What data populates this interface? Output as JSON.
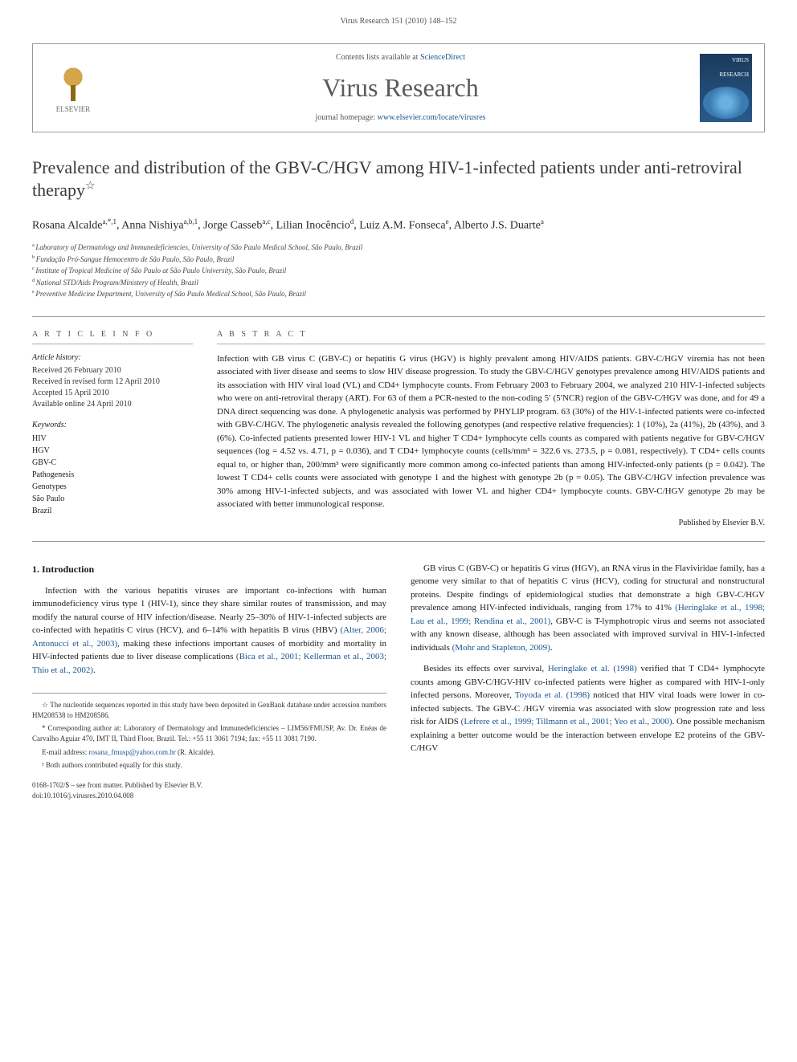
{
  "header": {
    "citation": "Virus Research 151 (2010) 148–152",
    "contents_prefix": "Contents lists available at ",
    "contents_link": "ScienceDirect",
    "journal_title": "Virus Research",
    "homepage_prefix": "journal homepage: ",
    "homepage_link": "www.elsevier.com/locate/virusres",
    "elsevier_label": "ELSEVIER",
    "cover_top": "VIRUS",
    "cover_bottom": "RESEARCH"
  },
  "title": "Prevalence and distribution of the GBV-C/HGV among HIV-1-infected patients under anti-retroviral therapy",
  "title_footnote_marker": "☆",
  "authors_html": "Rosana Alcalde",
  "authors": [
    {
      "name": "Rosana Alcalde",
      "sup": "a,*,1"
    },
    {
      "name": "Anna Nishiya",
      "sup": "a,b,1"
    },
    {
      "name": "Jorge Casseb",
      "sup": "a,c"
    },
    {
      "name": "Lilian Inocêncio",
      "sup": "d"
    },
    {
      "name": "Luiz A.M. Fonseca",
      "sup": "e"
    },
    {
      "name": "Alberto J.S. Duarte",
      "sup": "a"
    }
  ],
  "affiliations": [
    {
      "sup": "a",
      "text": "Laboratory of Dermatology and Immunedeficiencies, University of São Paulo Medical School, São Paulo, Brazil"
    },
    {
      "sup": "b",
      "text": "Fundação Pró-Sangue Hemocentro de São Paulo, São Paulo, Brazil"
    },
    {
      "sup": "c",
      "text": "Institute of Tropical Medicine of São Paulo at São Paulo University, São Paulo, Brazil"
    },
    {
      "sup": "d",
      "text": "National STD/Aids Program/Ministery of Health, Brazil"
    },
    {
      "sup": "e",
      "text": "Preventive Medicine Department, University of São Paulo Medical School, São Paulo, Brazil"
    }
  ],
  "article_info": {
    "heading": "A R T I C L E   I N F O",
    "history_title": "Article history:",
    "history": [
      "Received 26 February 2010",
      "Received in revised form 12 April 2010",
      "Accepted 15 April 2010",
      "Available online 24 April 2010"
    ],
    "keywords_title": "Keywords:",
    "keywords": [
      "HIV",
      "HGV",
      "GBV-C",
      "Pathogenesis",
      "Genotypes",
      "São Paulo",
      "Brazil"
    ]
  },
  "abstract": {
    "heading": "A B S T R A C T",
    "text": "Infection with GB virus C (GBV-C) or hepatitis G virus (HGV) is highly prevalent among HIV/AIDS patients. GBV-C/HGV viremia has not been associated with liver disease and seems to slow HIV disease progression. To study the GBV-C/HGV genotypes prevalence among HIV/AIDS patients and its association with HIV viral load (VL) and CD4+ lymphocyte counts. From February 2003 to February 2004, we analyzed 210 HIV-1-infected subjects who were on anti-retroviral therapy (ART). For 63 of them a PCR-nested to the non-coding 5′ (5′NCR) region of the GBV-C/HGV was done, and for 49 a DNA direct sequencing was done. A phylogenetic analysis was performed by PHYLIP program. 63 (30%) of the HIV-1-infected patients were co-infected with GBV-C/HGV. The phylogenetic analysis revealed the following genotypes (and respective relative frequencies): 1 (10%), 2a (41%), 2b (43%), and 3 (6%). Co-infected patients presented lower HIV-1 VL and higher T CD4+ lymphocyte cells counts as compared with patients negative for GBV-C/HGV sequences (log = 4.52 vs. 4.71, p = 0.036), and T CD4+ lymphocyte counts (cells/mm³ = 322.6 vs. 273.5, p = 0.081, respectively). T CD4+ cells counts equal to, or higher than, 200/mm³ were significantly more common among co-infected patients than among HIV-infected-only patients (p = 0.042). The lowest T CD4+ cells counts were associated with genotype 1 and the highest with genotype 2b (p = 0.05). The GBV-C/HGV infection prevalence was 30% among HIV-1-infected subjects, and was associated with lower VL and higher CD4+ lymphocyte counts. GBV-C/HGV genotype 2b may be associated with better immunological response.",
    "publisher": "Published by Elsevier B.V."
  },
  "body": {
    "section1_heading": "1. Introduction",
    "col1_p1": "Infection with the various hepatitis viruses are important co-infections with human immunodeficiency virus type 1 (HIV-1), since they share similar routes of transmission, and may modify the natural course of HIV infection/disease. Nearly 25–30% of HIV-1-infected subjects are co-infected with hepatitis C virus (HCV), and 6–14% with hepatitis B virus (HBV) ",
    "col1_ref1": "(Alter, 2006; Antonucci et al., 2003)",
    "col1_p1b": ", making these infections important causes of morbidity and mortality in HIV-infected patients due to liver disease complications ",
    "col1_ref2": "(Bica et al., 2001; Kellerman et al., 2003; Thio et al., 2002)",
    "col1_p1c": ".",
    "col2_p1": "GB virus C (GBV-C) or hepatitis G virus (HGV), an RNA virus in the Flaviviridae family, has a genome very similar to that of hepatitis C virus (HCV), coding for structural and nonstructural proteins. Despite findings of epidemiological studies that demonstrate a high GBV-C/HGV prevalence among HIV-infected individuals, ranging from 17% to 41% ",
    "col2_ref1": "(Heringlake et al., 1998; Lau et al., 1999; Rendina et al., 2001)",
    "col2_p1b": ", GBV-C is T-lymphotropic virus and seems not associated with any known disease, although has been associated with improved survival in HIV-1-infected individuals ",
    "col2_ref2": "(Mohr and Stapleton, 2009)",
    "col2_p1c": ".",
    "col2_p2a": "Besides its effects over survival, ",
    "col2_ref3": "Heringlake et al. (1998)",
    "col2_p2b": " verified that T CD4+ lymphocyte counts among GBV-C/HGV-HIV co-infected patients were higher as compared with HIV-1-only infected persons. Moreover, ",
    "col2_ref4": "Toyoda et al. (1998)",
    "col2_p2c": " noticed that HIV viral loads were lower in co-infected subjects. The GBV-C /HGV viremia was associated with slow progression rate and less risk for AIDS ",
    "col2_ref5": "(Lefrere et al., 1999; Tillmann et al., 2001; Yeo et al., 2000)",
    "col2_p2d": ". One possible mechanism explaining a better outcome would be the interaction between envelope E2 proteins of the GBV-C/HGV"
  },
  "footnotes": {
    "star": "☆ The nucleotide sequences reported in this study have been deposited in GenBank database under accession numbers HM208538 to HM208586.",
    "corresponding": "* Corresponding author at: Laboratory of Dermatology and Immunedeficiencies – LIM56/FMUSP, Av. Dr. Enéas de Carvalho Aguiar 470, IMT II, Third Floor, Brazil. Tel.: +55 11 3061 7194; fax: +55 11 3081 7190.",
    "email_label": "E-mail address: ",
    "email": "rosana_fmusp@yahoo.com.br",
    "email_suffix": " (R. Alcalde).",
    "equal": "¹ Both authors contributed equally for this study.",
    "copyright": "0168-1702/$ – see front matter. Published by Elsevier B.V.",
    "doi": "doi:10.1016/j.virusres.2010.04.008"
  },
  "colors": {
    "link": "#1a5490",
    "text": "#1a1a1a",
    "muted": "#555555",
    "border": "#999999"
  }
}
